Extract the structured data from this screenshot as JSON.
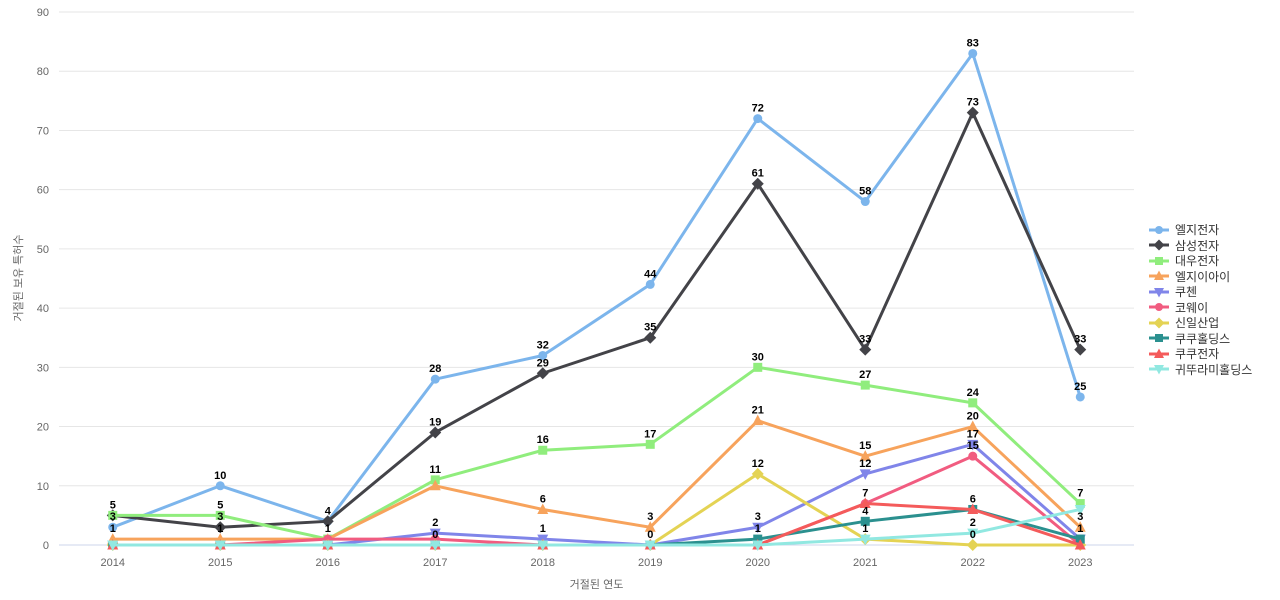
{
  "chart_data": {
    "type": "line",
    "x": [
      2014,
      2015,
      2016,
      2017,
      2018,
      2019,
      2020,
      2021,
      2022,
      2023
    ],
    "xlabel": "거절된 연도",
    "ylabel": "거절된 보유 특허수",
    "ylim": [
      0,
      90
    ],
    "ytick_step": 10,
    "grid": true,
    "legend_position": "right-middle",
    "background_color": "#ffffff",
    "gridline_color": "#e6e6e6",
    "axis_line_color": "#ccd6eb",
    "axis_text_color": "#666666",
    "data_label_color": "#000000",
    "series": [
      {
        "id": "lg-electronics",
        "name": "엘지전자",
        "color": "#7cb5ec",
        "marker": "circle",
        "values": [
          3,
          10,
          4,
          28,
          32,
          44,
          72,
          58,
          83,
          25
        ]
      },
      {
        "id": "samsung-electronics",
        "name": "삼성전자",
        "color": "#434348",
        "marker": "diamond",
        "values": [
          5,
          3,
          4,
          19,
          29,
          35,
          61,
          33,
          73,
          33
        ]
      },
      {
        "id": "daewoo-electronics",
        "name": "대우전자",
        "color": "#90ed7d",
        "marker": "square",
        "values": [
          5,
          5,
          1,
          11,
          16,
          17,
          30,
          27,
          24,
          7
        ]
      },
      {
        "id": "lg-ei",
        "name": "엘지이아이",
        "color": "#f7a35c",
        "marker": "triangle",
        "values": [
          1,
          1,
          1,
          10,
          6,
          3,
          21,
          15,
          20,
          3
        ]
      },
      {
        "id": "cuchen",
        "name": "쿠첸",
        "color": "#8085e9",
        "marker": "triangle-down",
        "values": [
          0,
          0,
          0,
          2,
          1,
          0,
          3,
          12,
          17,
          1
        ]
      },
      {
        "id": "coway",
        "name": "코웨이",
        "color": "#f15c80",
        "marker": "circle",
        "values": [
          0,
          0,
          1,
          1,
          0,
          0,
          0,
          7,
          15,
          0
        ]
      },
      {
        "id": "shinil-industry",
        "name": "신일산업",
        "color": "#e4d354",
        "marker": "diamond",
        "values": [
          0,
          0,
          0,
          0,
          0,
          0,
          12,
          1,
          0,
          0
        ]
      },
      {
        "id": "cuckoo-holdings",
        "name": "쿠쿠홀딩스",
        "color": "#2b908f",
        "marker": "square",
        "values": [
          0,
          0,
          0,
          0,
          0,
          0,
          1,
          4,
          6,
          1
        ]
      },
      {
        "id": "cuckoo-electronics",
        "name": "쿠쿠전자",
        "color": "#f45b5b",
        "marker": "triangle",
        "values": [
          0,
          0,
          0,
          0,
          0,
          0,
          0,
          7,
          6,
          0
        ]
      },
      {
        "id": "kiturami-holdings",
        "name": "귀뚜라미홀딩스",
        "color": "#91e8e1",
        "marker": "triangle-down",
        "values": [
          0,
          0,
          0,
          0,
          0,
          0,
          0,
          1,
          2,
          6
        ]
      }
    ],
    "zero_label_years": [
      2017,
      2019,
      2022
    ]
  }
}
